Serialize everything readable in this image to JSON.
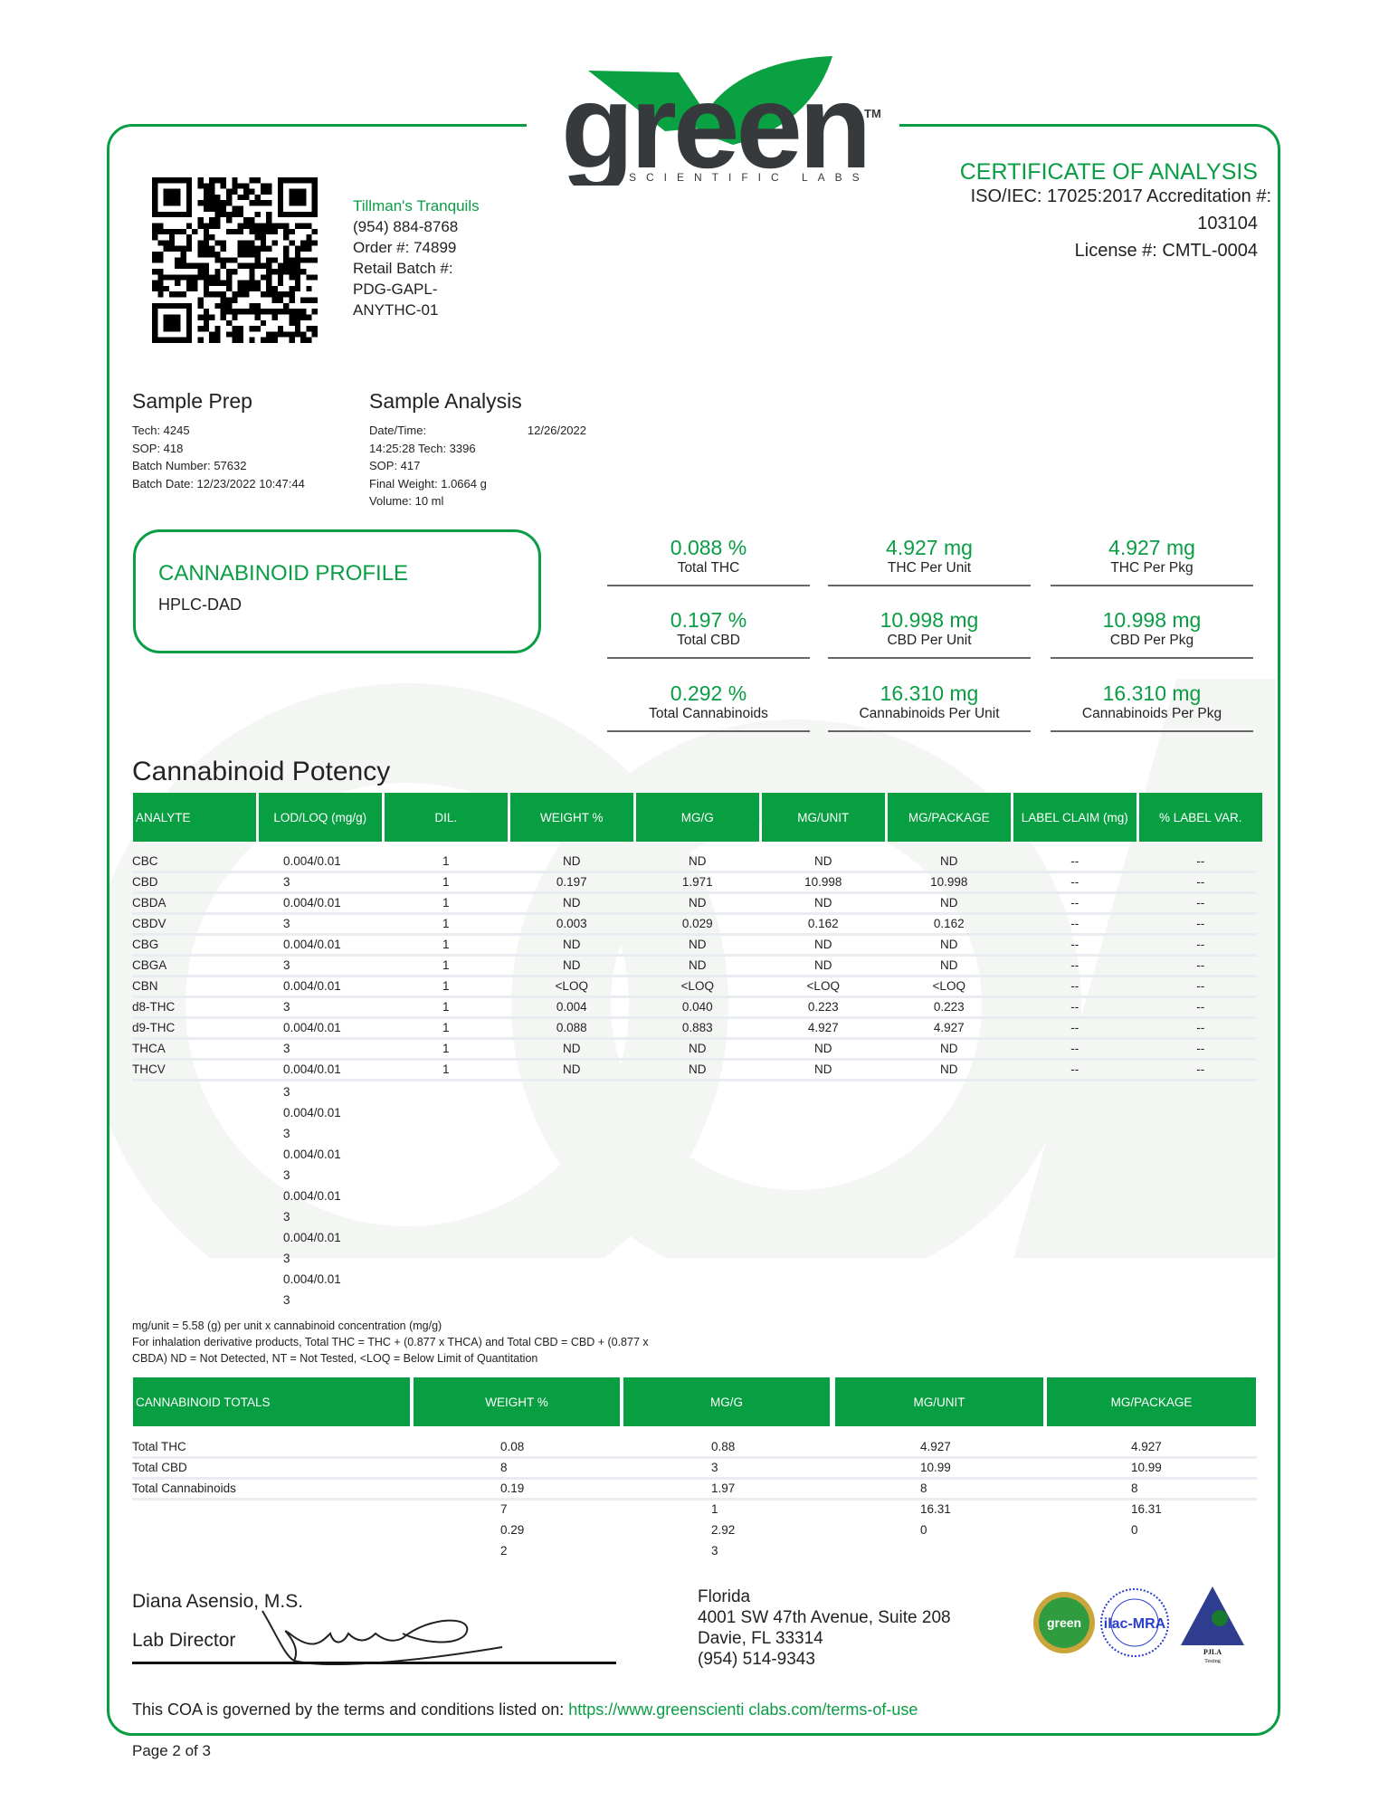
{
  "watermark": "COA",
  "logo": {
    "word": "green",
    "sub": "SCIENTIFIC LABS",
    "tm": "TM"
  },
  "colors": {
    "accent": "#0a9d44",
    "header_bg": "#079f41",
    "text": "#222222"
  },
  "client": {
    "name": "Tillman's Tranquils",
    "phone": "(954) 884-8768",
    "order": "Order #: 74899",
    "retail_batch_label": "Retail Batch #:",
    "retail_batch_1": "PDG-GAPL-",
    "retail_batch_2": "ANYTHC-01"
  },
  "coa": {
    "title": "CERTIFICATE OF ANALYSIS",
    "iso": "ISO/IEC: 17025:2017 Accreditation #:",
    "accreditation": "103104",
    "license": "License #: CMTL-0004"
  },
  "sample_prep": {
    "title": "Sample Prep",
    "lines": [
      "Tech: 4245",
      "SOP: 418",
      "Batch Number: 57632",
      "Batch Date: 12/23/2022 10:47:44"
    ]
  },
  "sample_analysis": {
    "title": "Sample Analysis",
    "date_label": "Date/Time:",
    "date": "12/26/2022",
    "lines": [
      "14:25:28 Tech: 3396",
      "SOP: 417",
      "Final Weight: 1.0664 g",
      "Volume: 10 ml"
    ]
  },
  "profile": {
    "title": "CANNABINOID PROFILE",
    "method": "HPLC-DAD"
  },
  "summary": [
    [
      {
        "v": "0.088 %",
        "l": "Total THC"
      },
      {
        "v": "4.927 mg",
        "l": "THC Per Unit"
      },
      {
        "v": "4.927 mg",
        "l": "THC Per Pkg"
      }
    ],
    [
      {
        "v": "0.197 %",
        "l": "Total CBD"
      },
      {
        "v": "10.998 mg",
        "l": "CBD Per Unit"
      },
      {
        "v": "10.998 mg",
        "l": "CBD Per Pkg"
      }
    ],
    [
      {
        "v": "0.292 %",
        "l": "Total Cannabinoids"
      },
      {
        "v": "16.310 mg",
        "l": "Cannabinoids Per Unit"
      },
      {
        "v": "16.310 mg",
        "l": "Cannabinoids Per Pkg"
      }
    ]
  ],
  "potency": {
    "title": "Cannabinoid Potency",
    "headers": [
      "ANALYTE",
      "LOD/LOQ (mg/g)",
      "DIL.",
      "WEIGHT %",
      "MG/G",
      "MG/UNIT",
      "MG/PACKAGE",
      "LABEL CLAIM (mg)",
      "% LABEL VAR."
    ],
    "rows": [
      [
        "CBC",
        "0.004/0.01",
        "1",
        "ND",
        "ND",
        "ND",
        "ND",
        "--",
        "--"
      ],
      [
        "CBD",
        "3",
        "1",
        "0.197",
        "1.971",
        "10.998",
        "10.998",
        "--",
        "--"
      ],
      [
        "CBDA",
        "0.004/0.01",
        "1",
        "ND",
        "ND",
        "ND",
        "ND",
        "--",
        "--"
      ],
      [
        "CBDV",
        "3",
        "1",
        "0.003",
        "0.029",
        "0.162",
        "0.162",
        "--",
        "--"
      ],
      [
        "CBG",
        "0.004/0.01",
        "1",
        "ND",
        "ND",
        "ND",
        "ND",
        "--",
        "--"
      ],
      [
        "CBGA",
        "3",
        "1",
        "ND",
        "ND",
        "ND",
        "ND",
        "--",
        "--"
      ],
      [
        "CBN",
        "0.004/0.01",
        "1",
        "<LOQ",
        "<LOQ",
        "<LOQ",
        "<LOQ",
        "--",
        "--"
      ],
      [
        "d8-THC",
        "3",
        "1",
        "0.004",
        "0.040",
        "0.223",
        "0.223",
        "--",
        "--"
      ],
      [
        "d9-THC",
        "0.004/0.01",
        "1",
        "0.088",
        "0.883",
        "4.927",
        "4.927",
        "--",
        "--"
      ],
      [
        "THCA",
        "3",
        "1",
        "ND",
        "ND",
        "ND",
        "ND",
        "--",
        "--"
      ],
      [
        "THCV",
        "0.004/0.01",
        "1",
        "ND",
        "ND",
        "ND",
        "ND",
        "--",
        "--"
      ]
    ],
    "lod_overflow": [
      "3",
      "0.004/0.01",
      "3",
      "0.004/0.01",
      "3",
      "0.004/0.01",
      "3",
      "0.004/0.01",
      "3",
      "0.004/0.01",
      "3"
    ],
    "notes": [
      "mg/unit = 5.58 (g) per unit x cannabinoid concentration (mg/g)",
      "For inhalation derivative products, Total THC = THC + (0.877 x THCA) and Total CBD = CBD + (0.877 x",
      "CBDA) ND = Not Detected, NT = Not Tested, <LOQ = Below Limit of Quantitation"
    ]
  },
  "totals": {
    "headers": [
      "CANNABINOID TOTALS",
      "WEIGHT %",
      "MG/G",
      "MG/UNIT",
      "MG/PACKAGE"
    ],
    "names": [
      "Total THC",
      "Total CBD",
      "Total Cannabinoids"
    ],
    "weight": [
      "0.08",
      "8",
      "0.19",
      "7",
      "0.29",
      "2"
    ],
    "mgg": [
      "0.88",
      "3",
      "1.97",
      "1",
      "2.92",
      "3"
    ],
    "mgunit": [
      "4.927",
      "10.99",
      "8",
      "16.31",
      "0"
    ],
    "mgpkg": [
      "4.927",
      "10.99",
      "8",
      "16.31",
      "0"
    ]
  },
  "signature": {
    "name": "Diana Asensio, M.S.",
    "role": "Lab Director"
  },
  "address": [
    "Florida",
    "4001 SW 47th Avenue, Suite 208",
    "Davie, FL 33314",
    "(954) 514-9343"
  ],
  "badges": {
    "b1": "green",
    "b2": "ilac-MRA",
    "b3": "PJLA",
    "b3sub": "Testing"
  },
  "terms": {
    "text": "This COA is governed by the terms and conditions listed on: ",
    "link": "https://www.greenscienti clabs.com/terms-of-use"
  },
  "page": "Page 2 of 3"
}
